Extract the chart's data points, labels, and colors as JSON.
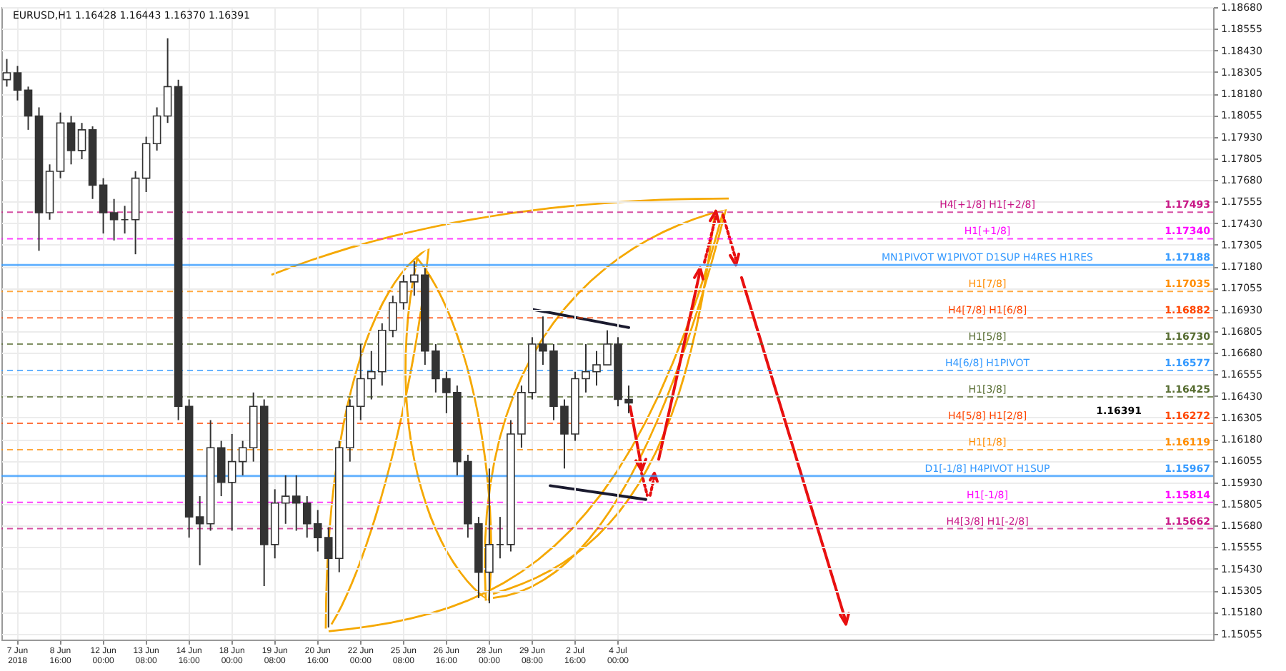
{
  "chart_data": {
    "type": "candlestick",
    "title": "EURUSD,H1  1.16428 1.16443 1.16370 1.16391",
    "categories": [
      null,
      "7 Jun 2018",
      null,
      null,
      null,
      "8 Jun 16:00",
      null,
      null,
      null,
      "12 Jun 00:00",
      null,
      null,
      null,
      "13 Jun 08:00",
      null,
      null,
      null,
      "14 Jun 16:00",
      null,
      null,
      null,
      "18 Jun 00:00",
      null,
      null,
      null,
      "19 Jun 08:00",
      null,
      null,
      null,
      "20 Jun 16:00",
      null,
      null,
      null,
      "22 Jun 00:00",
      null,
      null,
      null,
      "25 Jun 08:00",
      null,
      null,
      null,
      "26 Jun 16:00",
      null,
      null,
      null,
      "28 Jun 00:00",
      null,
      null,
      null,
      "29 Jun 08:00",
      null,
      null,
      null,
      "2 Jul 16:00",
      null,
      null,
      null,
      "4 Jul 00:00",
      null,
      null,
      null,
      null,
      null,
      null,
      null,
      null,
      null,
      null,
      null,
      null,
      null,
      null,
      null,
      null,
      null,
      null,
      null,
      null,
      null,
      null,
      null,
      null,
      null,
      null,
      null,
      null,
      null,
      null,
      null,
      null,
      null,
      null,
      null,
      null,
      null,
      null,
      null,
      null,
      null,
      null,
      null,
      null,
      null,
      null,
      null,
      null,
      null,
      null,
      null,
      null,
      null,
      null,
      null
    ],
    "ohlc": [
      [
        1.1826,
        1.1838,
        1.1822,
        1.183
      ],
      [
        1.183,
        1.1834,
        1.1814,
        1.182
      ],
      [
        1.182,
        1.1822,
        1.1797,
        1.1805
      ],
      [
        1.1805,
        1.181,
        1.1727,
        1.1749
      ],
      [
        1.1749,
        1.1777,
        1.1745,
        1.1773
      ],
      [
        1.1773,
        1.1807,
        1.1769,
        1.1801
      ],
      [
        1.1801,
        1.1805,
        1.1777,
        1.1785
      ],
      [
        1.1785,
        1.1801,
        1.178,
        1.1797
      ],
      [
        1.1797,
        1.1799,
        1.1757,
        1.1765
      ],
      [
        1.1765,
        1.1769,
        1.1737,
        1.1749
      ],
      [
        1.1749,
        1.1757,
        1.1733,
        1.1745
      ],
      [
        1.1745,
        1.1753,
        1.1737,
        1.1745
      ],
      [
        1.1745,
        1.1773,
        1.1725,
        1.1769
      ],
      [
        1.1769,
        1.1793,
        1.1761,
        1.1789
      ],
      [
        1.1789,
        1.181,
        1.1785,
        1.1805
      ],
      [
        1.1805,
        1.185,
        1.1801,
        1.1822
      ],
      [
        1.1822,
        1.1826,
        1.1629,
        1.1637
      ],
      [
        1.1637,
        1.1641,
        1.1561,
        1.1573
      ],
      [
        1.1573,
        1.1585,
        1.1545,
        1.1569
      ],
      [
        1.1569,
        1.1629,
        1.1565,
        1.1613
      ],
      [
        1.1613,
        1.1617,
        1.1585,
        1.1593
      ],
      [
        1.1593,
        1.1621,
        1.1565,
        1.1605
      ],
      [
        1.1605,
        1.1617,
        1.1597,
        1.1613
      ],
      [
        1.1613,
        1.1645,
        1.1605,
        1.1637
      ],
      [
        1.1637,
        1.1641,
        1.1533,
        1.1557
      ],
      [
        1.1557,
        1.1589,
        1.1549,
        1.1581
      ],
      [
        1.1581,
        1.1597,
        1.1569,
        1.1585
      ],
      [
        1.1585,
        1.1597,
        1.1565,
        1.1581
      ],
      [
        1.1581,
        1.1585,
        1.1561,
        1.1569
      ],
      [
        1.1569,
        1.1577,
        1.1553,
        1.1561
      ],
      [
        1.1561,
        1.1567,
        1.1509,
        1.1549
      ],
      [
        1.1549,
        1.1617,
        1.1541,
        1.1613
      ],
      [
        1.1613,
        1.1641,
        1.1605,
        1.1637
      ],
      [
        1.1637,
        1.1673,
        1.1629,
        1.1653
      ],
      [
        1.1653,
        1.1669,
        1.1641,
        1.1657
      ],
      [
        1.1657,
        1.1685,
        1.1649,
        1.1681
      ],
      [
        1.1681,
        1.1701,
        1.1677,
        1.1697
      ],
      [
        1.1697,
        1.1713,
        1.1693,
        1.1709
      ],
      [
        1.1709,
        1.1721,
        1.1701,
        1.1713
      ],
      [
        1.1713,
        1.1717,
        1.1661,
        1.1669
      ],
      [
        1.1669,
        1.1673,
        1.1645,
        1.1653
      ],
      [
        1.1653,
        1.1657,
        1.1633,
        1.1645
      ],
      [
        1.1645,
        1.1649,
        1.1597,
        1.1605
      ],
      [
        1.1605,
        1.1609,
        1.1561,
        1.1569
      ],
      [
        1.1569,
        1.1573,
        1.1526,
        1.1541
      ],
      [
        1.1541,
        1.1601,
        1.1523,
        1.1557
      ],
      [
        1.1557,
        1.1573,
        1.1549,
        1.1557
      ],
      [
        1.1557,
        1.1629,
        1.1553,
        1.1621
      ],
      [
        1.1621,
        1.1649,
        1.1613,
        1.1645
      ],
      [
        1.1645,
        1.1677,
        1.1641,
        1.1673
      ],
      [
        1.1673,
        1.1689,
        1.1661,
        1.1669
      ],
      [
        1.1669,
        1.1673,
        1.1629,
        1.1637
      ],
      [
        1.1637,
        1.1641,
        1.1601,
        1.1621
      ],
      [
        1.1621,
        1.1657,
        1.1617,
        1.1653
      ],
      [
        1.1653,
        1.1673,
        1.1645,
        1.1657
      ],
      [
        1.1657,
        1.1669,
        1.1649,
        1.1661
      ],
      [
        1.1661,
        1.1681,
        1.1661,
        1.1673
      ],
      [
        1.1673,
        1.1677,
        1.1637,
        1.1641
      ],
      [
        1.1641,
        1.1649,
        1.1633,
        1.1639
      ],
      null,
      null,
      null,
      null,
      null,
      null,
      null,
      null,
      null,
      null,
      null,
      null,
      null,
      null,
      null,
      null,
      null,
      null,
      null,
      null,
      null,
      null,
      null,
      null,
      null,
      null,
      null,
      null,
      null,
      null,
      null,
      null,
      null,
      null,
      null,
      null,
      null,
      null,
      null,
      null,
      null,
      null,
      null,
      null,
      null,
      null,
      null,
      null,
      null,
      null,
      null,
      null,
      null,
      null
    ],
    "ylim": [
      1.1502,
      1.1868
    ],
    "yticks": [
      1.15055,
      {
        "value": 1.1518,
        "label": "1.15180"
      },
      1.15305,
      {
        "value": 1.1543,
        "label": "1.15430"
      },
      1.15555,
      {
        "value": 1.1568,
        "label": "1.15680"
      },
      1.15805,
      {
        "value": 1.1593,
        "label": "1.15930"
      },
      1.16055,
      {
        "value": 1.1618,
        "label": "1.16180"
      },
      1.16305,
      {
        "value": 1.1643,
        "label": "1.16430"
      },
      1.16555,
      {
        "value": 1.1668,
        "label": "1.16680"
      },
      1.16805,
      {
        "value": 1.1693,
        "label": "1.16930"
      },
      1.17055,
      {
        "value": 1.1718,
        "label": "1.17180"
      },
      1.17305,
      {
        "value": 1.1743,
        "label": "1.17430"
      },
      1.17555,
      {
        "value": 1.1768,
        "label": "1.17680"
      },
      1.17805,
      {
        "value": 1.1793,
        "label": "1.17930"
      },
      1.18055,
      {
        "value": 1.1818,
        "label": "1.18180"
      },
      1.18305,
      {
        "value": 1.1843,
        "label": "1.18430"
      },
      1.18555,
      {
        "value": 1.1868,
        "label": "1.18680"
      }
    ],
    "grid": true,
    "ref_lines": [
      {
        "axis": "y",
        "value": 1.17493,
        "label": "H4[+1/8] H1[+2/8]",
        "color": "#c71585",
        "line_style": "dashed"
      },
      {
        "axis": "y",
        "value": 1.1734,
        "label": "H1[+1/8]",
        "color": "#ff00ff",
        "line_style": "dashed"
      },
      {
        "axis": "y",
        "value": 1.17188,
        "label": "MN1PIVOT W1PIVOT D1SUP H4RES H1RES",
        "color": "#3399ff",
        "line_style": "solid"
      },
      {
        "axis": "y",
        "value": 1.17035,
        "label": "H1[7/8]",
        "color": "#ff8c00",
        "line_style": "dashed"
      },
      {
        "axis": "y",
        "value": 1.16882,
        "label": "H4[7/8] H1[6/8]",
        "color": "#ff4500",
        "line_style": "dashed"
      },
      {
        "axis": "y",
        "value": 1.1673,
        "label": "H1[5/8]",
        "color": "#556b2f",
        "line_style": "dashed"
      },
      {
        "axis": "y",
        "value": 1.16577,
        "label": "H4[6/8] H1PIVOT",
        "color": "#3399ff",
        "line_style": "dashed"
      },
      {
        "axis": "y",
        "value": 1.16425,
        "label": "H1[3/8]",
        "color": "#556b2f",
        "line_style": "dashed"
      },
      {
        "axis": "y",
        "value": 1.16272,
        "label": "H4[5/8] H1[2/8]",
        "color": "#ff4500",
        "line_style": "dashed"
      },
      {
        "axis": "y",
        "value": 1.16119,
        "label": "H1[1/8]",
        "color": "#ff8c00",
        "line_style": "dashed"
      },
      {
        "axis": "y",
        "value": 1.15967,
        "label": "D1[-1/8] H4PIVOT H1SUP",
        "color": "#3399ff",
        "line_style": "solid"
      },
      {
        "axis": "y",
        "value": 1.15814,
        "label": "H1[-1/8]",
        "color": "#ff00ff",
        "line_style": "dashed"
      },
      {
        "axis": "y",
        "value": 1.15662,
        "label": "H4[3/8] H1[-2/8]",
        "color": "#c71585",
        "line_style": "dashed"
      }
    ],
    "annotations": [
      {
        "text": "1.17493",
        "y": 1.17493
      },
      {
        "text": "1.17340",
        "y": 1.1734
      },
      {
        "text": "1.17188",
        "y": 1.17188
      },
      {
        "text": "1.17035",
        "y": 1.17035
      },
      {
        "text": "1.16882",
        "y": 1.16882
      },
      {
        "text": "1.16730",
        "y": 1.1673
      },
      {
        "text": "1.16577",
        "y": 1.16577
      },
      {
        "text": "1.16425",
        "y": 1.16425
      },
      "1.16391",
      {
        "text": "1.16272",
        "y": 1.16272
      },
      {
        "text": "1.16119",
        "y": 1.16119
      },
      {
        "text": "1.15967",
        "y": 1.15967
      },
      {
        "text": "1.15814",
        "y": 1.15814
      },
      {
        "text": "1.15662",
        "y": 1.15662
      }
    ]
  }
}
